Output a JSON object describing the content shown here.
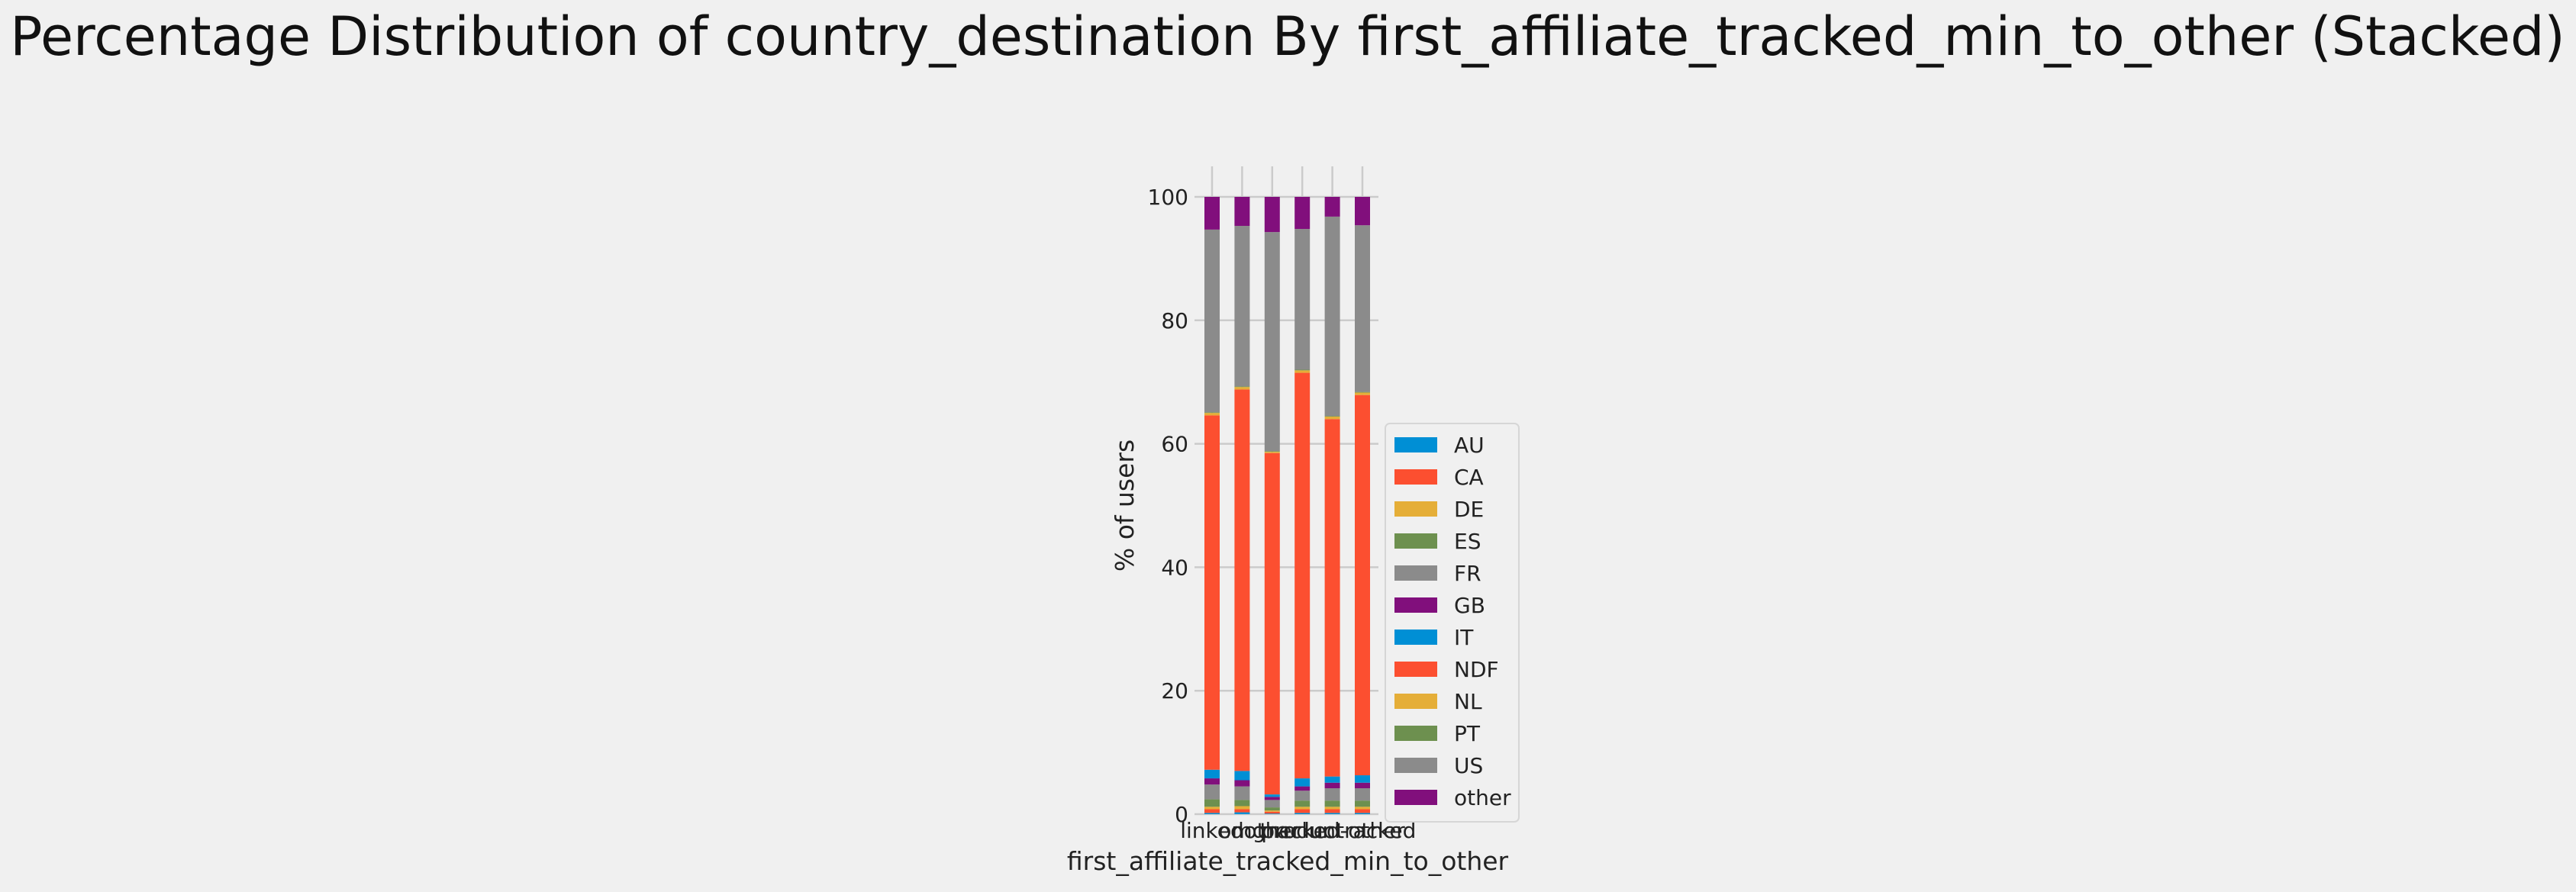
{
  "chart_data": {
    "type": "bar",
    "stacked": true,
    "title": "Percentage Distribution of country_destination By first_affiliate_tracked_min_to_other (Stacked)",
    "xlabel": "first_affiliate_tracked_min_to_other",
    "ylabel": "% of users",
    "ylim": [
      0,
      100
    ],
    "yticks": [
      0,
      20,
      40,
      60,
      80,
      100
    ],
    "grid": true,
    "legend_position": "lower-right",
    "categories": [
      "linked",
      "omg",
      "other",
      "product",
      "tracked-other",
      "untracked"
    ],
    "series": [
      {
        "name": "AU",
        "color": "#008fd5",
        "values": [
          0.2,
          0.3,
          0.1,
          0.2,
          0.2,
          0.2
        ]
      },
      {
        "name": "CA",
        "color": "#fc4f30",
        "values": [
          0.6,
          0.5,
          0.3,
          0.6,
          0.6,
          0.6
        ]
      },
      {
        "name": "DE",
        "color": "#e5ae38",
        "values": [
          0.4,
          0.5,
          0.2,
          0.4,
          0.4,
          0.4
        ]
      },
      {
        "name": "ES",
        "color": "#6d904f",
        "values": [
          1.2,
          1.0,
          0.5,
          1.0,
          1.0,
          1.0
        ]
      },
      {
        "name": "FR",
        "color": "#8b8b8b",
        "values": [
          2.4,
          2.2,
          1.2,
          1.6,
          2.0,
          2.0
        ]
      },
      {
        "name": "GB",
        "color": "#810f7c",
        "values": [
          1.0,
          1.0,
          0.5,
          0.7,
          0.9,
          0.9
        ]
      },
      {
        "name": "IT",
        "color": "#008fd5",
        "values": [
          1.4,
          1.5,
          0.4,
          1.3,
          1.0,
          1.2
        ]
      },
      {
        "name": "NDF",
        "color": "#fc4f30",
        "values": [
          57.4,
          61.8,
          55.3,
          65.7,
          57.9,
          61.6
        ]
      },
      {
        "name": "NL",
        "color": "#e5ae38",
        "values": [
          0.4,
          0.4,
          0.2,
          0.4,
          0.4,
          0.4
        ]
      },
      {
        "name": "PT",
        "color": "#6d904f",
        "values": [
          0.1,
          0.1,
          0.1,
          0.1,
          0.1,
          0.1
        ]
      },
      {
        "name": "US",
        "color": "#8b8b8b",
        "values": [
          29.6,
          26.0,
          35.5,
          22.8,
          32.3,
          27.0
        ]
      },
      {
        "name": "other",
        "color": "#810f7c",
        "values": [
          5.3,
          4.7,
          5.7,
          5.2,
          3.2,
          4.6
        ]
      }
    ]
  }
}
